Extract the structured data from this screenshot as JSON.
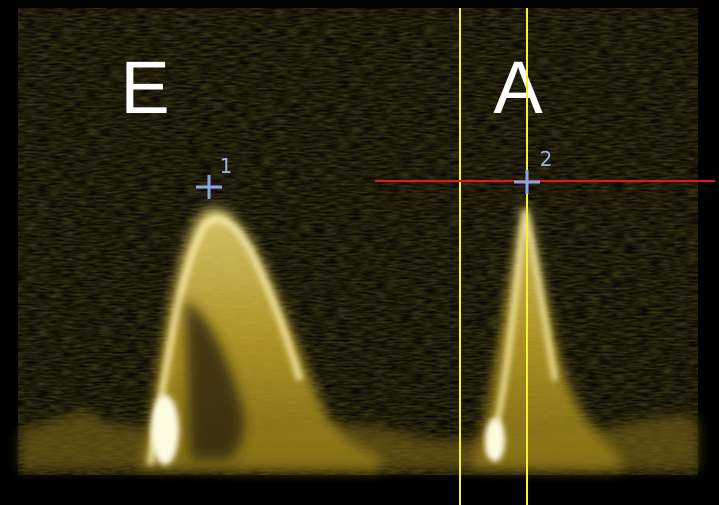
{
  "waves": [
    {
      "label": "E"
    },
    {
      "label": "A"
    }
  ],
  "markers": [
    {
      "label": "1"
    },
    {
      "label": "2"
    }
  ]
}
